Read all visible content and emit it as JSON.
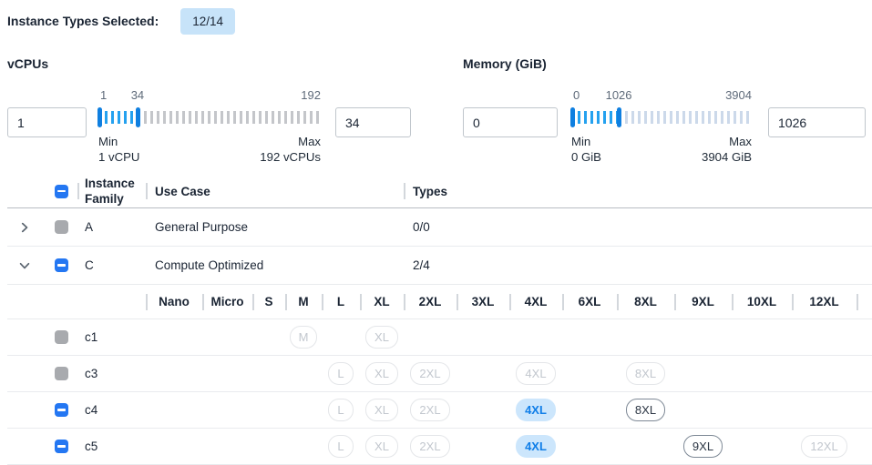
{
  "header": {
    "label": "Instance Types Selected:",
    "badge": "12/14"
  },
  "filters": {
    "vcpus": {
      "title": "vCPUs",
      "min_value": "1",
      "max_value": "34",
      "scale_low": "1",
      "scale_high": "34",
      "scale_end": "192",
      "min_label": "Min",
      "min_caption": "1 vCPU",
      "max_label": "Max",
      "max_caption": "192 vCPUs"
    },
    "memory": {
      "title": "Memory (GiB)",
      "min_value": "0",
      "max_value": "1026",
      "scale_low": "0",
      "scale_high": "1026",
      "scale_end": "3904",
      "min_label": "Min",
      "min_caption": "0 GiB",
      "max_label": "Max",
      "max_caption": "3904 GiB"
    }
  },
  "table": {
    "columns": {
      "family": "Instance Family",
      "use_case": "Use Case",
      "types": "Types"
    },
    "size_columns": [
      "Nano",
      "Micro",
      "S",
      "M",
      "L",
      "XL",
      "2XL",
      "3XL",
      "4XL",
      "6XL",
      "8XL",
      "9XL",
      "10XL",
      "12XL"
    ],
    "family_rows": [
      {
        "family": "A",
        "use_case": "General Purpose",
        "types": "0/0",
        "expanded": false,
        "checkbox": "disabled"
      },
      {
        "family": "C",
        "use_case": "Compute Optimized",
        "types": "2/4",
        "expanded": true,
        "checkbox": "indeterminate"
      }
    ],
    "instance_rows": [
      {
        "name": "c1",
        "checkbox": "disabled",
        "chips": [
          {
            "size": "M",
            "state": "disabled"
          },
          {
            "size": "XL",
            "state": "disabled"
          }
        ]
      },
      {
        "name": "c3",
        "checkbox": "disabled",
        "chips": [
          {
            "size": "L",
            "state": "disabled"
          },
          {
            "size": "XL",
            "state": "disabled"
          },
          {
            "size": "2XL",
            "state": "disabled"
          },
          {
            "size": "4XL",
            "state": "disabled"
          },
          {
            "size": "8XL",
            "state": "disabled"
          }
        ]
      },
      {
        "name": "c4",
        "checkbox": "indeterminate",
        "chips": [
          {
            "size": "L",
            "state": "disabled"
          },
          {
            "size": "XL",
            "state": "disabled"
          },
          {
            "size": "2XL",
            "state": "disabled"
          },
          {
            "size": "4XL",
            "state": "selected"
          },
          {
            "size": "8XL",
            "state": "enabled"
          }
        ]
      },
      {
        "name": "c5",
        "checkbox": "indeterminate",
        "chips": [
          {
            "size": "L",
            "state": "disabled"
          },
          {
            "size": "XL",
            "state": "disabled"
          },
          {
            "size": "2XL",
            "state": "disabled"
          },
          {
            "size": "4XL",
            "state": "selected"
          },
          {
            "size": "9XL",
            "state": "enabled"
          },
          {
            "size": "12XL",
            "state": "disabled"
          }
        ]
      }
    ]
  },
  "colors": {
    "accent_blue": "#2477f2",
    "badge_bg": "#c7e3f9",
    "slider_handle": "#0f7fe0",
    "active_tick": "#24a1ef",
    "inactive_tick_vcpu": "#c4c6ca",
    "inactive_tick_mem": "#ccd9ea",
    "selected_chip_bg": "#cce6fc",
    "selected_chip_text": "#0f7ee8"
  }
}
